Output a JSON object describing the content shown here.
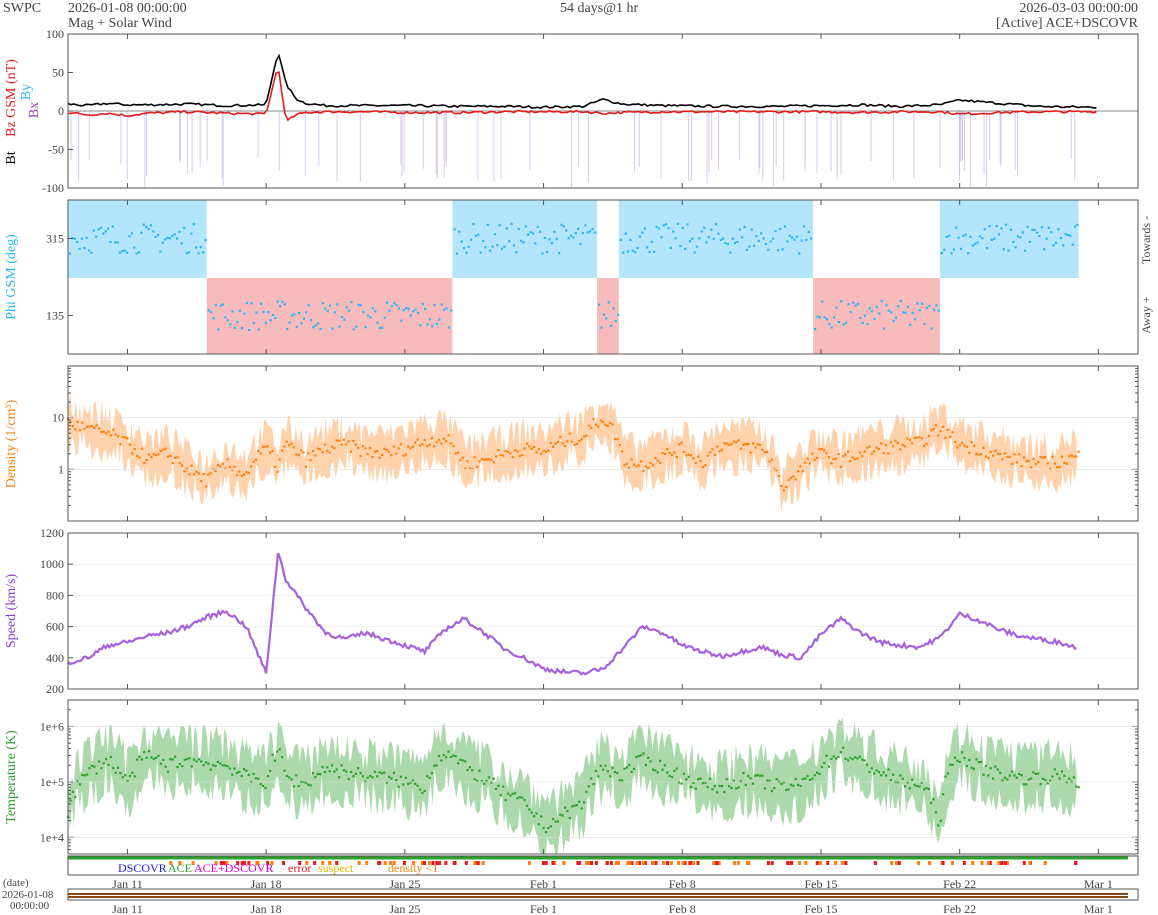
{
  "header": {
    "org": "SWPC",
    "start_time": "2026-01-08 00:00:00",
    "product": "Mag + Solar Wind",
    "span": "54 days@1 hr",
    "end_time": "2026-03-03 00:00:00",
    "source": "[Active] ACE+DSCOVR"
  },
  "colors": {
    "bt": "#000000",
    "bz": "#e41a1c",
    "bx": "#8e44ad",
    "by": "#29b6f6",
    "phi": "#29b6f6",
    "toward_fill": "#b3e5fc",
    "away_fill": "#f8bbbb",
    "density": "#ff7f0e",
    "speed": "#8e3ad6",
    "temperature": "#2ca02c"
  },
  "x_axis": {
    "ticks": [
      "Jan 11",
      "Jan 18",
      "Jan 25",
      "Feb 1",
      "Feb 8",
      "Feb 15",
      "Feb 22",
      "Mar 1"
    ],
    "tick_days": [
      3,
      10,
      17,
      24,
      31,
      38,
      45,
      52
    ],
    "range_days": [
      0,
      54
    ],
    "date_label": "(date)",
    "date_start": "2026-01-08",
    "date_start_time": "00:00:00"
  },
  "legend": {
    "dscovr": "DSCOVR",
    "ace": "ACE",
    "ace_dscovr": "ACE+DSCOVR",
    "error": "error",
    "suspect": "suspect",
    "density_lt1": "density <1"
  },
  "chart_data": [
    {
      "type": "line",
      "ylabel_parts": [
        "Bt",
        "Bz GSM (nT)",
        "Bx",
        "By"
      ],
      "ylim": [
        -100,
        100
      ],
      "yticks": [
        100,
        50,
        0,
        -50,
        -100
      ],
      "series": [
        {
          "name": "Bt",
          "x": [
            0,
            1,
            2,
            3,
            4,
            6,
            8,
            10,
            10.6,
            11,
            11.5,
            12,
            13,
            15,
            17,
            20,
            22,
            24,
            26,
            27,
            28,
            30,
            33,
            36,
            38,
            40,
            42,
            44,
            45,
            47,
            49,
            51,
            52
          ],
          "values": [
            9,
            7,
            10,
            8,
            8,
            9,
            7,
            8,
            78,
            35,
            16,
            10,
            7,
            7,
            7,
            6,
            6,
            5,
            6,
            15,
            9,
            7,
            6,
            6,
            7,
            8,
            6,
            8,
            14,
            10,
            6,
            5,
            5
          ]
        },
        {
          "name": "Bz",
          "x": [
            0,
            1,
            2,
            3,
            4,
            6,
            8,
            10,
            10.6,
            11,
            11.5,
            12,
            13,
            15,
            17,
            20,
            22,
            24,
            26,
            27,
            28,
            30,
            33,
            36,
            38,
            40,
            42,
            44,
            45,
            47,
            49,
            51,
            52
          ],
          "values": [
            -2,
            -5,
            -3,
            -6,
            -3,
            -1,
            -3,
            -4,
            60,
            -14,
            -5,
            -2,
            -1,
            -1,
            -2,
            -2,
            -1,
            -1,
            -1,
            -3,
            -2,
            -1,
            -1,
            -1,
            -1,
            -2,
            -1,
            -1,
            -4,
            -2,
            -1,
            -1,
            -1
          ]
        }
      ]
    },
    {
      "type": "scatter",
      "ylabel": "Phi GSM (deg)",
      "yticks": [
        315,
        135
      ],
      "ylim": [
        45,
        405
      ],
      "right_labels": [
        "Towards -",
        "Away +"
      ],
      "sectors": [
        {
          "from": 0,
          "to": 7,
          "polarity": "toward"
        },
        {
          "from": 7,
          "to": 19.4,
          "polarity": "away"
        },
        {
          "from": 19.4,
          "to": 26.7,
          "polarity": "toward"
        },
        {
          "from": 26.7,
          "to": 27.8,
          "polarity": "away"
        },
        {
          "from": 27.8,
          "to": 37.6,
          "polarity": "toward"
        },
        {
          "from": 37.6,
          "to": 44,
          "polarity": "away"
        },
        {
          "from": 44,
          "to": 51,
          "polarity": "toward"
        }
      ]
    },
    {
      "type": "area",
      "ylabel": "Density (1/cm³)",
      "yscale": "log",
      "ylim": [
        0.1,
        100
      ],
      "yticks": [
        "10",
        "1"
      ],
      "x": [
        0,
        1,
        2,
        3,
        4,
        5,
        6,
        7,
        8,
        9,
        10,
        10.6,
        11,
        12,
        13,
        14,
        15,
        16,
        17,
        18,
        19,
        20,
        21,
        22,
        23,
        24,
        25,
        26,
        27,
        28,
        29,
        30,
        31,
        32,
        33,
        34,
        35,
        36,
        37,
        38,
        39,
        40,
        41,
        42,
        43,
        44,
        45,
        46,
        47,
        48,
        49,
        50,
        51
      ],
      "values": [
        8,
        6,
        5,
        3,
        1.5,
        2,
        1,
        0.6,
        1.2,
        0.8,
        2.5,
        1,
        3,
        1.5,
        2.5,
        3,
        2.2,
        2,
        2.5,
        3.5,
        4,
        1.2,
        1.5,
        2,
        2.5,
        2.2,
        3.5,
        4.2,
        10,
        1.5,
        1.2,
        1.8,
        2.5,
        1.3,
        3,
        2.8,
        2.6,
        0.4,
        1,
        2,
        1.5,
        2,
        2.5,
        3,
        3.2,
        6,
        3,
        2.5,
        1.8,
        1.5,
        1.3,
        1.4,
        1.8
      ]
    },
    {
      "type": "line",
      "ylabel": "Speed (km/s)",
      "ylim": [
        200,
        1200
      ],
      "yticks": [
        1200,
        1000,
        800,
        600,
        400,
        200
      ],
      "x": [
        0,
        1,
        2,
        3,
        4,
        5,
        6,
        7,
        8,
        9,
        10,
        10.6,
        11,
        12,
        13,
        14,
        15,
        16,
        17,
        18,
        19,
        20,
        21,
        22,
        23,
        24,
        25,
        26,
        27,
        28,
        29,
        30,
        31,
        32,
        33,
        34,
        35,
        36,
        37,
        38,
        39,
        40,
        41,
        42,
        43,
        44,
        45,
        46,
        47,
        48,
        49,
        50,
        51
      ],
      "values": [
        370,
        400,
        480,
        500,
        540,
        560,
        600,
        660,
        700,
        600,
        300,
        1080,
        900,
        720,
        560,
        520,
        560,
        520,
        480,
        440,
        580,
        650,
        560,
        460,
        400,
        330,
        310,
        300,
        330,
        460,
        600,
        560,
        480,
        440,
        410,
        440,
        470,
        420,
        400,
        550,
        650,
        560,
        500,
        480,
        470,
        530,
        680,
        640,
        580,
        540,
        520,
        500,
        460
      ]
    },
    {
      "type": "area",
      "ylabel": "Temperature (K)",
      "yscale": "log",
      "ylim": [
        5000,
        3000000
      ],
      "yticks": [
        "1e+6",
        "1e+5",
        "1e+4"
      ],
      "x": [
        0,
        1,
        2,
        3,
        4,
        5,
        6,
        7,
        8,
        9,
        10,
        10.6,
        11,
        12,
        13,
        14,
        15,
        16,
        17,
        18,
        19,
        20,
        21,
        22,
        23,
        24,
        25,
        26,
        27,
        28,
        29,
        30,
        31,
        32,
        33,
        34,
        35,
        36,
        37,
        38,
        39,
        40,
        41,
        42,
        43,
        44,
        45,
        46,
        47,
        48,
        49,
        50,
        51
      ],
      "values": [
        30000,
        140000,
        250000,
        90000,
        300000,
        200000,
        250000,
        220000,
        200000,
        120000,
        100000,
        350000,
        120000,
        90000,
        180000,
        150000,
        130000,
        120000,
        100000,
        80000,
        350000,
        180000,
        110000,
        60000,
        40000,
        15000,
        25000,
        40000,
        180000,
        130000,
        250000,
        180000,
        120000,
        90000,
        80000,
        110000,
        100000,
        80000,
        90000,
        180000,
        350000,
        220000,
        150000,
        100000,
        90000,
        15000,
        300000,
        180000,
        140000,
        120000,
        120000,
        130000,
        100000
      ]
    }
  ]
}
